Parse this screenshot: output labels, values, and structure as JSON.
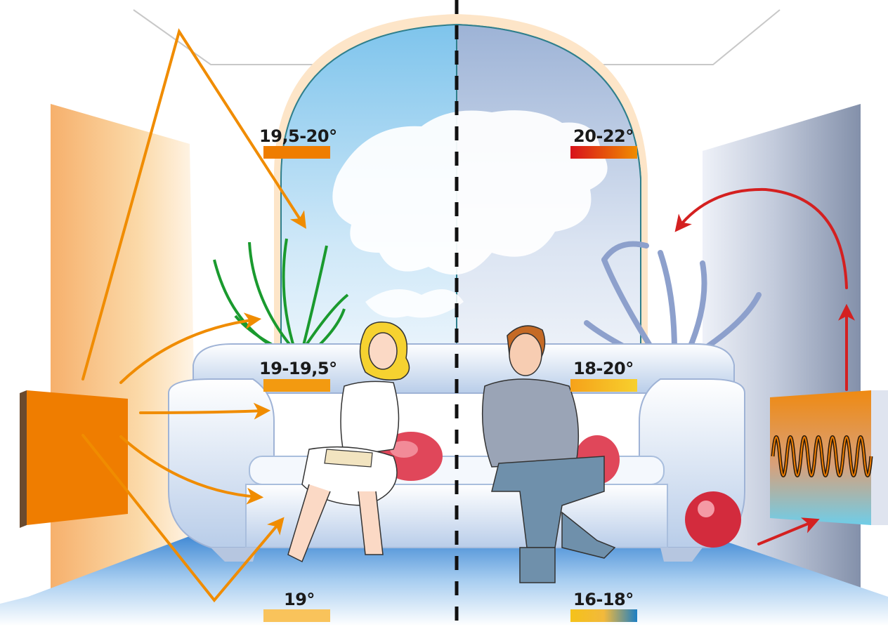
{
  "labels": {
    "left_window": "19,5-20°",
    "left_sofa": "19-19,5°",
    "left_floor": "19°",
    "right_window": "20-22°",
    "right_sofa": "18-20°",
    "right_floor": "16-18°"
  },
  "colors": {
    "radiant_arrow": "#f08c00",
    "convection_arrow": "#d42020",
    "left_wall": "#f7b97a",
    "right_wall": "#8e9ab2",
    "floor": "#4a8fd6",
    "panel_heater": "#ef7d00",
    "divider": "#111111"
  },
  "icons": {
    "left_heater": "radiant-panel-heater-icon",
    "right_heater": "convector-radiator-icon",
    "divider": "dashed-divider-line"
  }
}
